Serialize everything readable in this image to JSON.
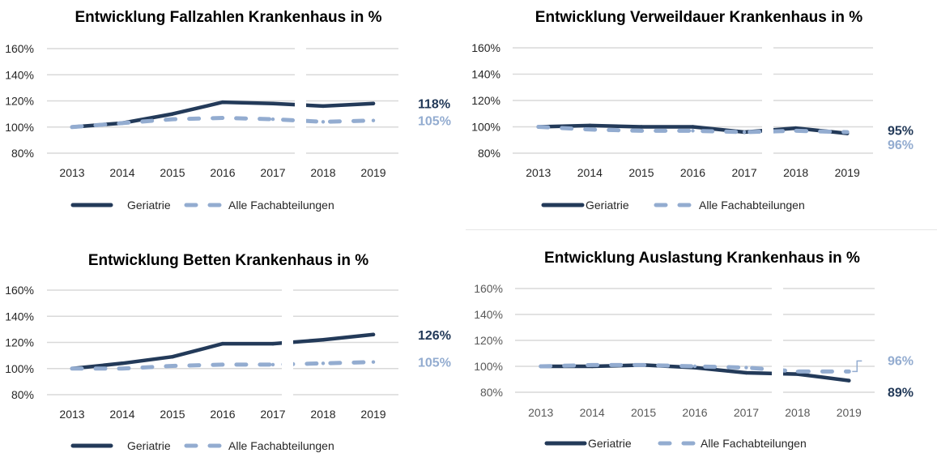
{
  "colors": {
    "geriatrie": "#233a59",
    "alle": "#93acd0",
    "grid": "#d9d9d9",
    "axis_text": "#262626",
    "axis_text_muted": "#595959",
    "title": "#000000"
  },
  "chart_data": [
    {
      "type": "line",
      "title": "Entwicklung Fallzahlen Krankenhaus in %",
      "categories": [
        "2013",
        "2014",
        "2015",
        "2016",
        "2017",
        "2018",
        "2019"
      ],
      "yticks": [
        "80%",
        "100%",
        "120%",
        "140%",
        "160%"
      ],
      "ylim": [
        80,
        160
      ],
      "grid": true,
      "legend": "bottom",
      "series": [
        {
          "name": "Geriatrie",
          "values": [
            100,
            103,
            110,
            119,
            118,
            116,
            118
          ],
          "end_label": "118%",
          "style": "solid"
        },
        {
          "name": "Alle Fachabteilungen",
          "values": [
            100,
            103,
            106,
            107,
            106,
            104,
            105
          ],
          "end_label": "105%",
          "style": "dashed"
        }
      ]
    },
    {
      "type": "line",
      "title": "Entwicklung Verweildauer Krankenhaus in %",
      "categories": [
        "2013",
        "2014",
        "2015",
        "2016",
        "2017",
        "2018",
        "2019"
      ],
      "yticks": [
        "80%",
        "100%",
        "120%",
        "140%",
        "160%"
      ],
      "ylim": [
        80,
        160
      ],
      "grid": true,
      "legend": "bottom",
      "series": [
        {
          "name": "Geriatrie",
          "values": [
            100,
            101,
            100,
            100,
            96,
            99,
            95
          ],
          "end_label": "95%",
          "style": "solid"
        },
        {
          "name": "Alle Fachabteilungen",
          "values": [
            100,
            98,
            97,
            97,
            96,
            97,
            96
          ],
          "end_label": "96%",
          "style": "dashed"
        }
      ]
    },
    {
      "type": "line",
      "title": "Entwicklung Betten Krankenhaus in %",
      "categories": [
        "2013",
        "2014",
        "2015",
        "2016",
        "2017",
        "2018",
        "2019"
      ],
      "yticks": [
        "80%",
        "100%",
        "120%",
        "140%",
        "160%"
      ],
      "ylim": [
        80,
        160
      ],
      "grid": true,
      "legend": "bottom",
      "series": [
        {
          "name": "Geriatrie",
          "values": [
            100,
            104,
            109,
            119,
            119,
            122,
            126
          ],
          "end_label": "126%",
          "style": "solid"
        },
        {
          "name": "Alle Fachabteilungen",
          "values": [
            100,
            100,
            102,
            103,
            103,
            104,
            105
          ],
          "end_label": "105%",
          "style": "dashed"
        }
      ]
    },
    {
      "type": "line",
      "title": "Entwicklung Auslastung Krankenhaus in %",
      "categories": [
        "2013",
        "2014",
        "2015",
        "2016",
        "2017",
        "2018",
        "2019"
      ],
      "yticks": [
        "80%",
        "100%",
        "120%",
        "140%",
        "160%"
      ],
      "ylim": [
        80,
        160
      ],
      "grid": true,
      "legend": "bottom",
      "series": [
        {
          "name": "Geriatrie",
          "values": [
            100,
            100,
            101,
            99,
            95,
            94,
            89
          ],
          "end_label": "89%",
          "style": "solid"
        },
        {
          "name": "Alle Fachabteilungen",
          "values": [
            100,
            101,
            101,
            100,
            99,
            96,
            96
          ],
          "end_label": "96%",
          "style": "dashed"
        }
      ]
    }
  ]
}
